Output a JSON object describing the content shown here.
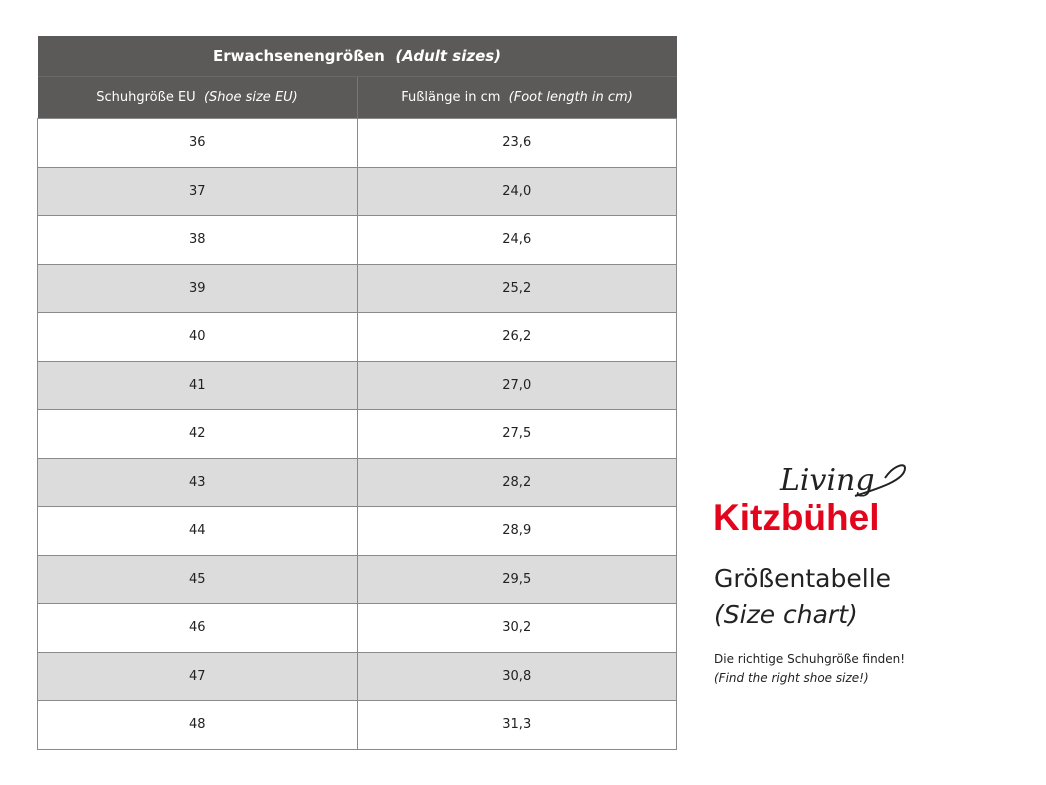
{
  "table": {
    "title": {
      "main": "Erwachsenengrößen",
      "sub": "(Adult sizes)"
    },
    "columns": [
      {
        "main": "Schuhgröße EU",
        "sub": "(Shoe size EU)"
      },
      {
        "main": "Fußlänge in cm",
        "sub": "(Foot length in cm)"
      }
    ],
    "rows": [
      [
        "36",
        "23,6"
      ],
      [
        "37",
        "24,0"
      ],
      [
        "38",
        "24,6"
      ],
      [
        "39",
        "25,2"
      ],
      [
        "40",
        "26,2"
      ],
      [
        "41",
        "27,0"
      ],
      [
        "42",
        "27,5"
      ],
      [
        "43",
        "28,2"
      ],
      [
        "44",
        "28,9"
      ],
      [
        "45",
        "29,5"
      ],
      [
        "46",
        "30,2"
      ],
      [
        "47",
        "30,8"
      ],
      [
        "48",
        "31,3"
      ]
    ]
  },
  "brand": {
    "script": "Living",
    "name": "Kitzbühel"
  },
  "heading": {
    "main": "Größentabelle",
    "sub": "(Size chart)"
  },
  "note": {
    "main": "Die richtige Schuhgröße finden!",
    "sub": "(Find the right shoe size!)"
  }
}
